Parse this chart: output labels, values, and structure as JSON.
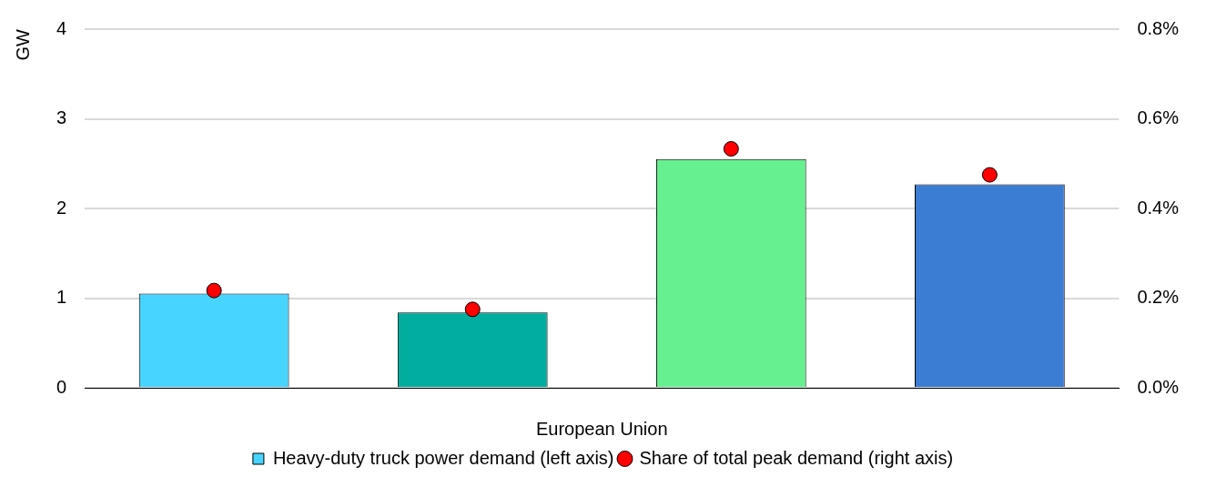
{
  "chart_data": {
    "type": "bar",
    "categories": [
      null,
      null,
      null,
      null
    ],
    "xlabel": "European Union",
    "ylabel": "GW",
    "series": [
      {
        "name": "Heavy-duty truck power demand (left axis)",
        "colors": [
          "#47d4ff",
          "#00ad9f",
          "#66f08f",
          "#3c7dd4"
        ],
        "values": [
          1.05,
          0.84,
          2.55,
          2.27
        ]
      },
      {
        "name": "Share of total peak demand (right axis)",
        "type": "scatter",
        "axis": "y2",
        "color": "#ff0000",
        "marker": "circle",
        "values": [
          0.217,
          0.175,
          0.533,
          0.475
        ]
      }
    ],
    "ylim": [
      0,
      4
    ],
    "yticks": [
      0,
      1,
      2,
      3,
      4
    ],
    "y2lim": [
      0,
      0.8
    ],
    "y2ticks": [
      {
        "value": 0,
        "label": "0.0%"
      },
      {
        "value": 0.2,
        "label": "0.2%"
      },
      {
        "value": 0.4,
        "label": "0.4%"
      },
      {
        "value": 0.6,
        "label": "0.6%"
      },
      {
        "value": 0.8,
        "label": "0.8%"
      }
    ],
    "grid": "y",
    "legend": "bottom"
  }
}
